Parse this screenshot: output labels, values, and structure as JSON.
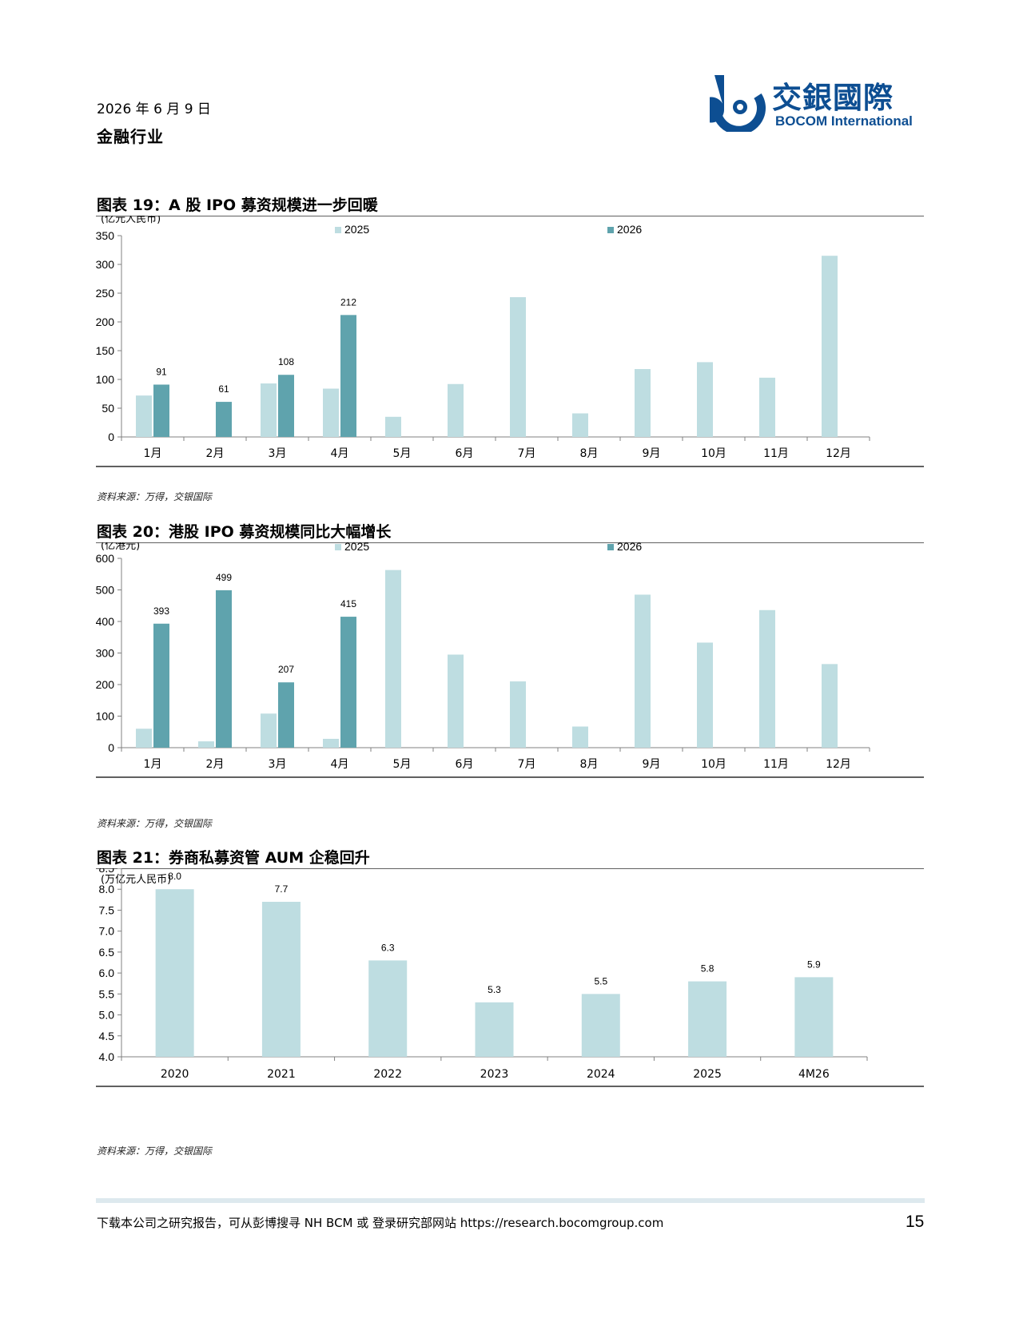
{
  "header": {
    "date": "2026 年 6 月 9 日",
    "sector": "金融行业",
    "logo_cn": "交銀國際",
    "logo_en": "BOCOM International"
  },
  "colors": {
    "series_2025": "#bedde1",
    "series_2026": "#5fa3ad",
    "logo_blue": "#0d4e92",
    "footer_bar": "#dde9ee"
  },
  "charts": [
    {
      "title": "图表 19：A 股 IPO 募资规模进一步回暖",
      "unit": "(亿元人民币)",
      "source": "资料来源：万得，交银国际"
    },
    {
      "title": "图表 20：港股 IPO 募资规模同比大幅增长",
      "unit": "(亿港元)",
      "source": "资料来源：万得，交银国际"
    },
    {
      "title": "图表 21：券商私募资管 AUM 企稳回升",
      "unit": "(万亿元人民币)",
      "source": "资料来源：万得，交银国际"
    }
  ],
  "chart_data": [
    {
      "type": "bar",
      "title": "图表 19：A 股 IPO 募资规模进一步回暖",
      "ylabel": "(亿元人民币)",
      "categories": [
        "1月",
        "2月",
        "3月",
        "4月",
        "5月",
        "6月",
        "7月",
        "8月",
        "9月",
        "10月",
        "11月",
        "12月"
      ],
      "ylim": [
        0,
        350
      ],
      "yticks": [
        0,
        50,
        100,
        150,
        200,
        250,
        300,
        350
      ],
      "legend": "top",
      "series": [
        {
          "name": "2025",
          "values": [
            72,
            0,
            93,
            84,
            35,
            92,
            243,
            41,
            118,
            130,
            103,
            315
          ],
          "show_labels": false
        },
        {
          "name": "2026",
          "values": [
            91,
            61,
            108,
            212,
            null,
            null,
            null,
            null,
            null,
            null,
            null,
            null
          ],
          "show_labels": true
        }
      ]
    },
    {
      "type": "bar",
      "title": "图表 20：港股 IPO 募资规模同比大幅增长",
      "ylabel": "(亿港元)",
      "categories": [
        "1月",
        "2月",
        "3月",
        "4月",
        "5月",
        "6月",
        "7月",
        "8月",
        "9月",
        "10月",
        "11月",
        "12月"
      ],
      "ylim": [
        0,
        600
      ],
      "yticks": [
        0,
        100,
        200,
        300,
        400,
        500,
        600
      ],
      "legend": "top",
      "series": [
        {
          "name": "2025",
          "values": [
            60,
            20,
            108,
            28,
            563,
            295,
            210,
            67,
            485,
            333,
            436,
            265
          ],
          "show_labels": false
        },
        {
          "name": "2026",
          "values": [
            393,
            499,
            207,
            415,
            null,
            null,
            null,
            null,
            null,
            null,
            null,
            null
          ],
          "show_labels": true
        }
      ]
    },
    {
      "type": "bar",
      "title": "图表 21：券商私募资管 AUM 企稳回升",
      "ylabel": "(万亿元人民币)",
      "categories": [
        "2020",
        "2021",
        "2022",
        "2023",
        "2024",
        "2025",
        "4M26"
      ],
      "ylim": [
        4.0,
        8.5
      ],
      "yticks": [
        "4.0",
        "4.5",
        "5.0",
        "5.5",
        "6.0",
        "6.5",
        "7.0",
        "7.5",
        "8.0",
        "8.5"
      ],
      "series": [
        {
          "values": [
            8.0,
            7.7,
            6.3,
            5.3,
            5.5,
            5.8,
            5.9
          ],
          "labels": [
            "8.0",
            "7.7",
            "6.3",
            "5.3",
            "5.5",
            "5.8",
            "5.9"
          ],
          "show_labels": true
        }
      ]
    }
  ],
  "footer": {
    "text": "下载本公司之研究报告，可从彭博搜寻 NH BCM 或 登录研究部网站 https://research.bocomgroup.com",
    "page": "15"
  }
}
